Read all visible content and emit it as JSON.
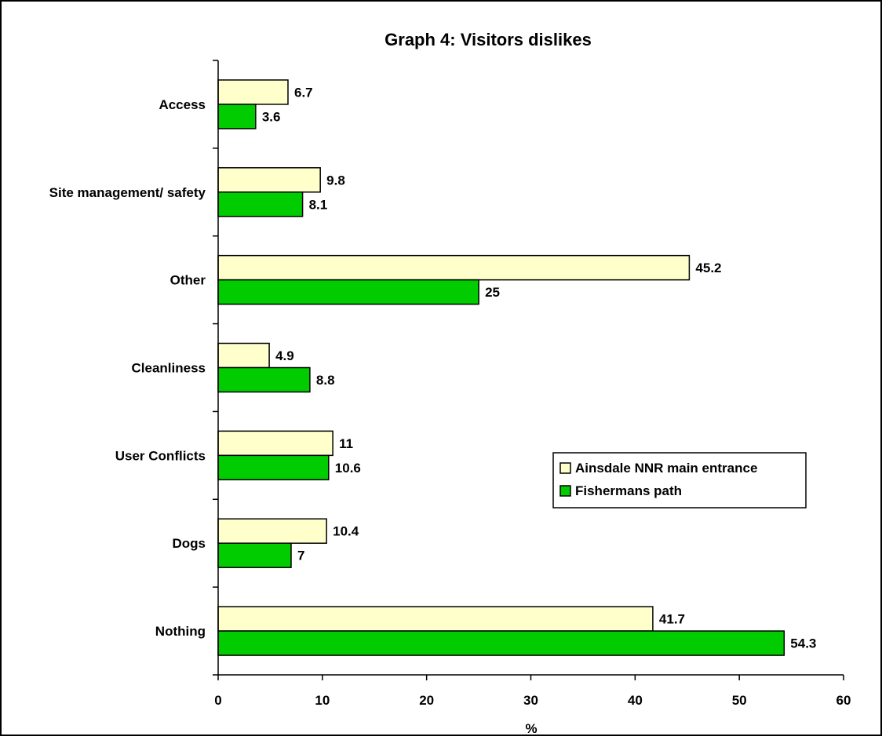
{
  "chart_data": {
    "type": "bar",
    "orientation": "horizontal",
    "title": "Graph 4: Visitors dislikes",
    "xlabel": "%",
    "ylabel": "",
    "xlim": [
      0,
      60
    ],
    "xticks": [
      "0",
      "10",
      "20",
      "30",
      "40",
      "50",
      "60"
    ],
    "grid": false,
    "legend_position": "right",
    "categories": [
      "Access",
      "Site management/ safety",
      "Other",
      "Cleanliness",
      "User Conflicts",
      "Dogs",
      "Nothing"
    ],
    "series": [
      {
        "name": "Ainsdale NNR main entrance",
        "color": "#FFFFCC",
        "values": [
          6.7,
          9.8,
          45.2,
          4.9,
          11,
          10.4,
          41.7
        ],
        "labels": [
          "6.7",
          "9.8",
          "45.2",
          "4.9",
          "11",
          "10.4",
          "41.7"
        ]
      },
      {
        "name": "Fishermans path",
        "color": "#00CC00",
        "values": [
          3.6,
          8.1,
          25,
          8.8,
          10.6,
          7,
          54.3
        ],
        "labels": [
          "3.6",
          "8.1",
          "25",
          "8.8",
          "10.6",
          "7",
          "54.3"
        ]
      }
    ]
  }
}
